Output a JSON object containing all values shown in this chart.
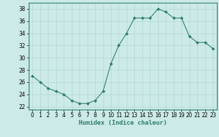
{
  "x": [
    0,
    1,
    2,
    3,
    4,
    5,
    6,
    7,
    8,
    9,
    10,
    11,
    12,
    13,
    14,
    15,
    16,
    17,
    18,
    19,
    20,
    21,
    22,
    23
  ],
  "y": [
    27,
    26,
    25,
    24.5,
    24,
    23,
    22.5,
    22.5,
    23,
    24.5,
    29,
    32,
    34,
    36.5,
    36.5,
    36.5,
    38,
    37.5,
    36.5,
    36.5,
    33.5,
    32.5,
    32.5,
    31.5
  ],
  "line_color": "#2e7b6e",
  "marker": "D",
  "marker_size": 2.0,
  "background_color": "#cceae7",
  "grid_color": "#aed8d4",
  "xlabel": "Humidex (Indice chaleur)",
  "xlim": [
    -0.5,
    23.5
  ],
  "ylim": [
    21.5,
    39
  ],
  "yticks": [
    22,
    24,
    26,
    28,
    30,
    32,
    34,
    36,
    38
  ],
  "xticks": [
    0,
    1,
    2,
    3,
    4,
    5,
    6,
    7,
    8,
    9,
    10,
    11,
    12,
    13,
    14,
    15,
    16,
    17,
    18,
    19,
    20,
    21,
    22,
    23
  ],
  "xlabel_fontsize": 6.5,
  "tick_fontsize": 5.5
}
